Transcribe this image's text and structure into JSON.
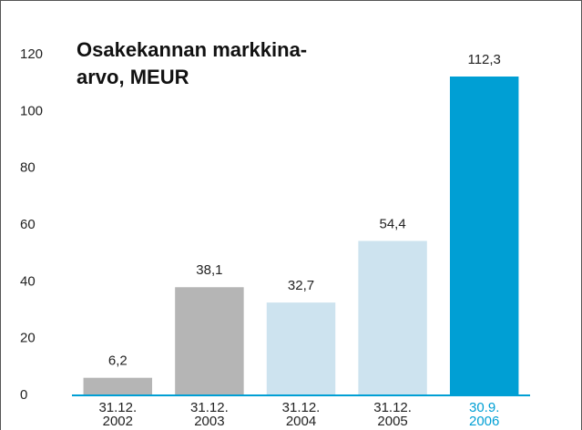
{
  "chart_data": {
    "type": "bar",
    "title": [
      "Osakekannan markkina-",
      "arvo, MEUR"
    ],
    "categories": [
      "31.12.\n2002",
      "31.12.\n2003",
      "31.12.\n2004",
      "31.12.\n2005",
      "30.9.\n2006"
    ],
    "values": [
      6.2,
      38.1,
      32.7,
      54.4,
      112.3
    ],
    "value_labels": [
      "6,2",
      "38,1",
      "32,7",
      "54,4",
      "112,3"
    ],
    "colors": [
      "#b5b5b5",
      "#b5b5b5",
      "#cde3ef",
      "#cde3ef",
      "#009fd4"
    ],
    "ylim": [
      0,
      120
    ],
    "yticks": [
      0,
      20,
      40,
      60,
      80,
      100,
      120
    ],
    "grid": false
  }
}
